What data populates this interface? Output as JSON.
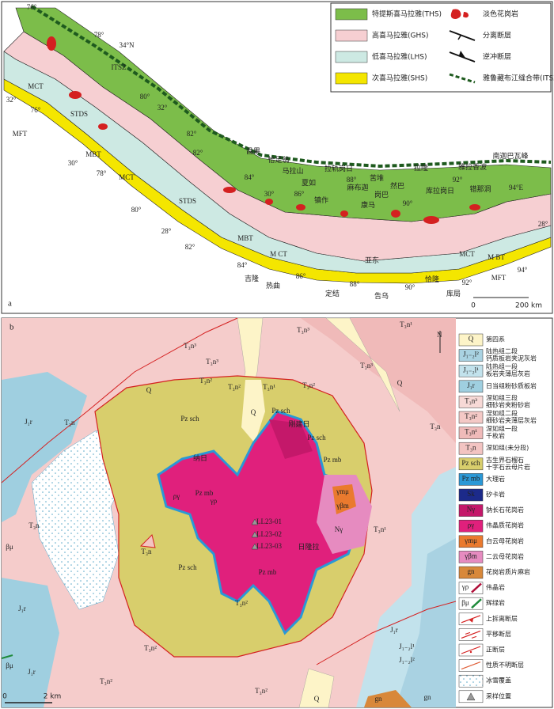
{
  "panel_a": {
    "label": "a",
    "legend": [
      {
        "label": "特提斯喜马拉雅(THS)",
        "color": "#7cbd4a",
        "symbol": "fill"
      },
      {
        "label": "淡色花岗岩",
        "color": "#d42020",
        "symbol": "leucogranite"
      },
      {
        "label": "高喜马拉雅(GHS)",
        "color": "#f6cfd2",
        "symbol": "fill"
      },
      {
        "label": "分离断层",
        "color": "#111111",
        "symbol": "detachment"
      },
      {
        "label": "低喜马拉雅(LHS)",
        "color": "#cde9e3",
        "symbol": "fill"
      },
      {
        "label": "逆冲断层",
        "color": "#111111",
        "symbol": "thrust"
      },
      {
        "label": "次喜马拉雅(SHS)",
        "color": "#f4e600",
        "symbol": "fill"
      },
      {
        "label": "雅鲁藏布江缝合带(ITSZ)",
        "color": "#1e5a1e",
        "symbol": "suture"
      }
    ],
    "map_labels": [
      "76°",
      "78°",
      "34°N",
      "ITSZ",
      "STDS",
      "MCT",
      "32°",
      "76°",
      "MFT",
      "80°",
      "32°",
      "82°",
      "MBT",
      "30°",
      "78°",
      "MCT",
      "STDS",
      "80°",
      "28°",
      "82°",
      "MBT",
      "M CT",
      "84°",
      "吉隆",
      "热曲",
      "86°",
      "定结",
      "88°",
      "告乌",
      "亚东",
      "90°",
      "恰隆",
      "库局",
      "92°",
      "MCT",
      "M BT",
      "MFT",
      "94°",
      "28°",
      "94°E",
      "南迦巴瓦峰",
      "错那洞",
      "雅拉香波",
      "92°",
      "库拉岗日",
      "拉隆",
      "然巴",
      "90°",
      "康马",
      "岗巴",
      "苦堆",
      "麻布迦",
      "88°",
      "拉轨岗日",
      "镇作",
      "夏如",
      "86°",
      "马拉山",
      "恰足翁",
      "30°",
      "昌果",
      "84°",
      "82°"
    ],
    "scale": [
      "0",
      "200 km"
    ]
  },
  "panel_b": {
    "label": "b",
    "north": "N",
    "legend": [
      {
        "code": "Q",
        "text": [
          "第四系"
        ],
        "color": "#fdf4c8",
        "symbol": "fill"
      },
      {
        "code": "J₁₋₂l²",
        "text": [
          "陆热组二段",
          "钙质板岩夹泥灰岩"
        ],
        "color": "#a9d2e2",
        "symbol": "fill"
      },
      {
        "code": "J₁₋₂l¹",
        "text": [
          "陆热组一段",
          "板岩夹薄层灰岩"
        ],
        "color": "#c2e2ec",
        "symbol": "fill"
      },
      {
        "code": "J₁r",
        "text": [
          "日当组粉砂质板岩"
        ],
        "color": "#9fcfe0",
        "symbol": "fill"
      },
      {
        "code": "T₃n³",
        "text": [
          "涅如组三段",
          "细砂岩夹粉砂岩"
        ],
        "color": "#f7d9d6",
        "symbol": "fill"
      },
      {
        "code": "T₃n²",
        "text": [
          "涅如组二段",
          "细砂岩夹薄层灰岩"
        ],
        "color": "#f4c9c6",
        "symbol": "fill"
      },
      {
        "code": "T₃n¹",
        "text": [
          "涅如组一段",
          "千枚岩"
        ],
        "color": "#f0bab9",
        "symbol": "fill"
      },
      {
        "code": "T₃n",
        "text": [
          "涅如组(未分段)"
        ],
        "color": "#f3c4c2",
        "symbol": "fill"
      },
      {
        "code": "Pz sch",
        "text": [
          "古生界石榴石",
          "十字石云母片岩"
        ],
        "color": "#d8ce6c",
        "symbol": "fill"
      },
      {
        "code": "Pz mb",
        "text": [
          "大理岩"
        ],
        "color": "#2a98d6",
        "symbol": "fill"
      },
      {
        "code": "Sk",
        "text": [
          "矽卡岩"
        ],
        "color": "#1c2a8a",
        "symbol": "fill"
      },
      {
        "code": "Nγ",
        "text": [
          "钠长石花岗岩"
        ],
        "color": "#c4186a",
        "symbol": "fill"
      },
      {
        "code": "ργ",
        "text": [
          "伟晶质花岗岩"
        ],
        "color": "#e0207c",
        "symbol": "fill"
      },
      {
        "code": "γmμ",
        "text": [
          "白云母花岗岩"
        ],
        "color": "#ea7a2e",
        "symbol": "fill"
      },
      {
        "code": "γβm",
        "text": [
          "二云母花岗岩"
        ],
        "color": "#e68bc0",
        "symbol": "fill"
      },
      {
        "code": "gn",
        "text": [
          "花岗岩质片麻岩"
        ],
        "color": "#d8883a",
        "symbol": "fill"
      },
      {
        "code": "γρ",
        "text": [
          "伟晶岩"
        ],
        "color": "#b0103a",
        "symbol": "dike"
      },
      {
        "code": "βμ",
        "text": [
          "辉绿岩"
        ],
        "color": "#1e8a3a",
        "symbol": "dike"
      },
      {
        "text": [
          "上拆离断层"
        ],
        "color": "#d42020",
        "symbol": "detachment"
      },
      {
        "text": [
          "平移断层"
        ],
        "color": "#d42020",
        "symbol": "strike-slip"
      },
      {
        "text": [
          "正断层"
        ],
        "color": "#d42020",
        "symbol": "normal"
      },
      {
        "text": [
          "性质不明断层"
        ],
        "color": "#e0603a",
        "symbol": "unknown"
      },
      {
        "text": [
          "冰雪覆盖"
        ],
        "color": "#5aa8c8",
        "symbol": "ice"
      },
      {
        "text": [
          "采样位置"
        ],
        "color": "#999999",
        "symbol": "sample"
      }
    ],
    "map_labels": [
      "T₃n³",
      "T₃n³",
      "T₃n³",
      "T₃n¹",
      "Q",
      "T₃n³",
      "T₃n²",
      "T₃n²",
      "T₃n¹",
      "T₃n²",
      "Q",
      "T₃n",
      "J₁r",
      "T₃n",
      "Pz sch",
      "Pz sch",
      "Q",
      "刚建日",
      "Pz sch",
      "Pz mb",
      "纳日",
      "Pz mb",
      "ργ",
      "γρ",
      "γmμ",
      "γβm",
      "Nγ",
      "T₃n",
      "βμ",
      "T₃n",
      "Pz sch",
      "Pz mb",
      "日隆拉",
      "LL23-01",
      "LL23-02",
      "LL23-03",
      "T₃n¹",
      "T₃n²",
      "T₃n²",
      "J₁r",
      "J₁r",
      "J₁₋₂l¹",
      "J₁₋₂l²",
      "βμ",
      "J₁r",
      "T₃n²",
      "T₃n²",
      "Q",
      "gn",
      "gn"
    ],
    "scale": [
      "0",
      "2 km"
    ]
  }
}
